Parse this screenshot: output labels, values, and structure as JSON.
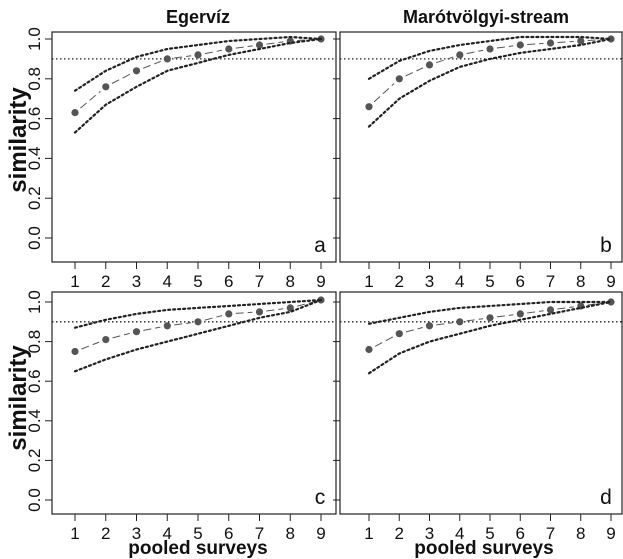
{
  "figure": {
    "ylabel": "similarity",
    "xlabel": "pooled surveys",
    "colors": {
      "points": "#555555",
      "lines": "#222222",
      "frame": "#222222"
    }
  },
  "chart_data": [
    {
      "type": "line",
      "title": "Egervíz",
      "panel_label": "a",
      "xlabel": "",
      "ylabel": "similarity",
      "x": [
        1,
        2,
        3,
        4,
        5,
        6,
        7,
        8,
        9
      ],
      "xlim": [
        1,
        9
      ],
      "ylim": [
        0,
        1
      ],
      "xticks": [
        "1",
        "2",
        "3",
        "4",
        "5",
        "6",
        "7",
        "8",
        "9"
      ],
      "yticks": [
        "0.0",
        "0.2",
        "0.4",
        "0.6",
        "0.8",
        "1.0"
      ],
      "reference_line": 0.9,
      "series": [
        {
          "role": "mean",
          "style": "points-dashed",
          "values": [
            0.63,
            0.76,
            0.84,
            0.9,
            0.92,
            0.95,
            0.97,
            0.99,
            1.0
          ]
        },
        {
          "role": "upper",
          "style": "dotted",
          "values": [
            0.74,
            0.84,
            0.91,
            0.95,
            0.97,
            0.99,
            1.0,
            1.01,
            1.0
          ]
        },
        {
          "role": "lower",
          "style": "dotted",
          "values": [
            0.53,
            0.67,
            0.76,
            0.84,
            0.88,
            0.92,
            0.95,
            0.98,
            1.0
          ]
        }
      ]
    },
    {
      "type": "line",
      "title": "Marótvölgyi-stream",
      "panel_label": "b",
      "xlabel": "",
      "ylabel": "",
      "x": [
        1,
        2,
        3,
        4,
        5,
        6,
        7,
        8,
        9
      ],
      "xlim": [
        1,
        9
      ],
      "ylim": [
        0,
        1
      ],
      "xticks": [
        "1",
        "2",
        "3",
        "4",
        "5",
        "6",
        "7",
        "8",
        "9"
      ],
      "yticks": [],
      "reference_line": 0.9,
      "series": [
        {
          "role": "mean",
          "style": "points-dashed",
          "values": [
            0.66,
            0.8,
            0.87,
            0.92,
            0.95,
            0.97,
            0.98,
            0.99,
            1.0
          ]
        },
        {
          "role": "upper",
          "style": "dotted",
          "values": [
            0.8,
            0.89,
            0.94,
            0.97,
            0.99,
            1.01,
            1.01,
            1.01,
            1.0
          ]
        },
        {
          "role": "lower",
          "style": "dotted",
          "values": [
            0.56,
            0.7,
            0.79,
            0.86,
            0.9,
            0.93,
            0.95,
            0.97,
            1.0
          ]
        }
      ]
    },
    {
      "type": "line",
      "title": "",
      "panel_label": "c",
      "xlabel": "pooled surveys",
      "ylabel": "similarity",
      "x": [
        1,
        2,
        3,
        4,
        5,
        6,
        7,
        8,
        9
      ],
      "xlim": [
        1,
        9
      ],
      "ylim": [
        0,
        1
      ],
      "xticks": [
        "1",
        "2",
        "3",
        "4",
        "5",
        "6",
        "7",
        "8",
        "9"
      ],
      "yticks": [
        "0.0",
        "0.2",
        "0.4",
        "0.6",
        "0.8",
        "1.0"
      ],
      "reference_line": 0.9,
      "series": [
        {
          "role": "mean",
          "style": "points-dashed",
          "values": [
            0.75,
            0.81,
            0.85,
            0.88,
            0.9,
            0.94,
            0.95,
            0.97,
            1.01
          ]
        },
        {
          "role": "upper",
          "style": "dotted",
          "values": [
            0.87,
            0.91,
            0.94,
            0.96,
            0.97,
            0.98,
            0.99,
            1.0,
            1.01
          ]
        },
        {
          "role": "lower",
          "style": "dotted",
          "values": [
            0.65,
            0.71,
            0.76,
            0.8,
            0.84,
            0.88,
            0.92,
            0.95,
            1.01
          ]
        }
      ]
    },
    {
      "type": "line",
      "title": "",
      "panel_label": "d",
      "xlabel": "pooled surveys",
      "ylabel": "",
      "x": [
        1,
        2,
        3,
        4,
        5,
        6,
        7,
        8,
        9
      ],
      "xlim": [
        1,
        9
      ],
      "ylim": [
        0,
        1
      ],
      "xticks": [
        "1",
        "2",
        "3",
        "4",
        "5",
        "6",
        "7",
        "8",
        "9"
      ],
      "yticks": [],
      "reference_line": 0.9,
      "series": [
        {
          "role": "mean",
          "style": "points-dashed",
          "values": [
            0.76,
            0.84,
            0.88,
            0.9,
            0.92,
            0.94,
            0.96,
            0.98,
            1.0
          ]
        },
        {
          "role": "upper",
          "style": "dotted",
          "values": [
            0.89,
            0.92,
            0.95,
            0.97,
            0.98,
            0.99,
            1.0,
            1.0,
            1.0
          ]
        },
        {
          "role": "lower",
          "style": "dotted",
          "values": [
            0.64,
            0.74,
            0.8,
            0.84,
            0.88,
            0.91,
            0.94,
            0.97,
            1.0
          ]
        }
      ]
    }
  ]
}
